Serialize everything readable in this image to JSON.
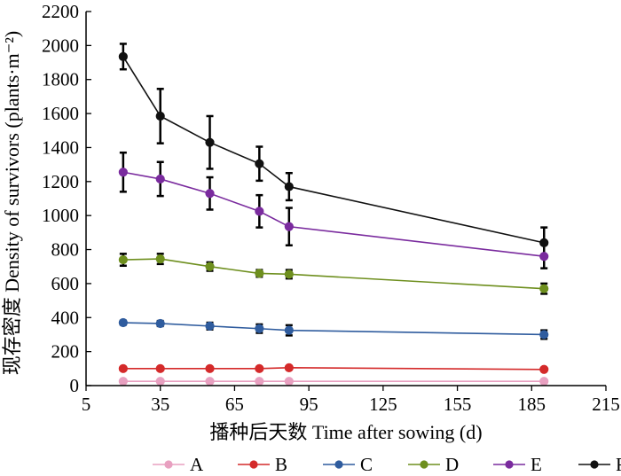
{
  "chart_data": {
    "type": "line",
    "xlabel": "播种后天数 Time after sowing (d)",
    "ylabel": "现存密度 Density of survivors (plants·m⁻²)",
    "xlim": [
      5,
      215
    ],
    "ylim": [
      0,
      2200
    ],
    "xticks": [
      5,
      35,
      65,
      95,
      125,
      155,
      185,
      215
    ],
    "yticks": [
      0,
      200,
      400,
      600,
      800,
      1000,
      1200,
      1400,
      1600,
      1800,
      2000,
      2200
    ],
    "x": [
      20,
      35,
      55,
      75,
      87,
      190
    ],
    "grid": false,
    "legend_position": "bottom",
    "series": [
      {
        "name": "A",
        "color": "#e8a0c0",
        "values": [
          25,
          25,
          25,
          25,
          25,
          25
        ],
        "errors": [
          3,
          3,
          3,
          3,
          3,
          3
        ]
      },
      {
        "name": "B",
        "color": "#d42a2a",
        "values": [
          100,
          100,
          100,
          100,
          105,
          95
        ],
        "errors": [
          5,
          5,
          5,
          5,
          8,
          5
        ]
      },
      {
        "name": "C",
        "color": "#2f5c9e",
        "values": [
          370,
          365,
          350,
          335,
          325,
          300
        ],
        "errors": [
          12,
          15,
          20,
          25,
          30,
          25
        ]
      },
      {
        "name": "D",
        "color": "#6e8f1e",
        "values": [
          740,
          745,
          700,
          660,
          655,
          570
        ],
        "errors": [
          35,
          30,
          25,
          20,
          25,
          30
        ]
      },
      {
        "name": "E",
        "color": "#7a2b9e",
        "values": [
          1255,
          1215,
          1130,
          1025,
          935,
          760
        ],
        "errors": [
          115,
          100,
          95,
          95,
          110,
          70
        ]
      },
      {
        "name": "F",
        "color": "#111111",
        "values": [
          1935,
          1585,
          1430,
          1305,
          1170,
          840
        ],
        "errors": [
          75,
          160,
          155,
          100,
          80,
          90
        ]
      }
    ]
  }
}
